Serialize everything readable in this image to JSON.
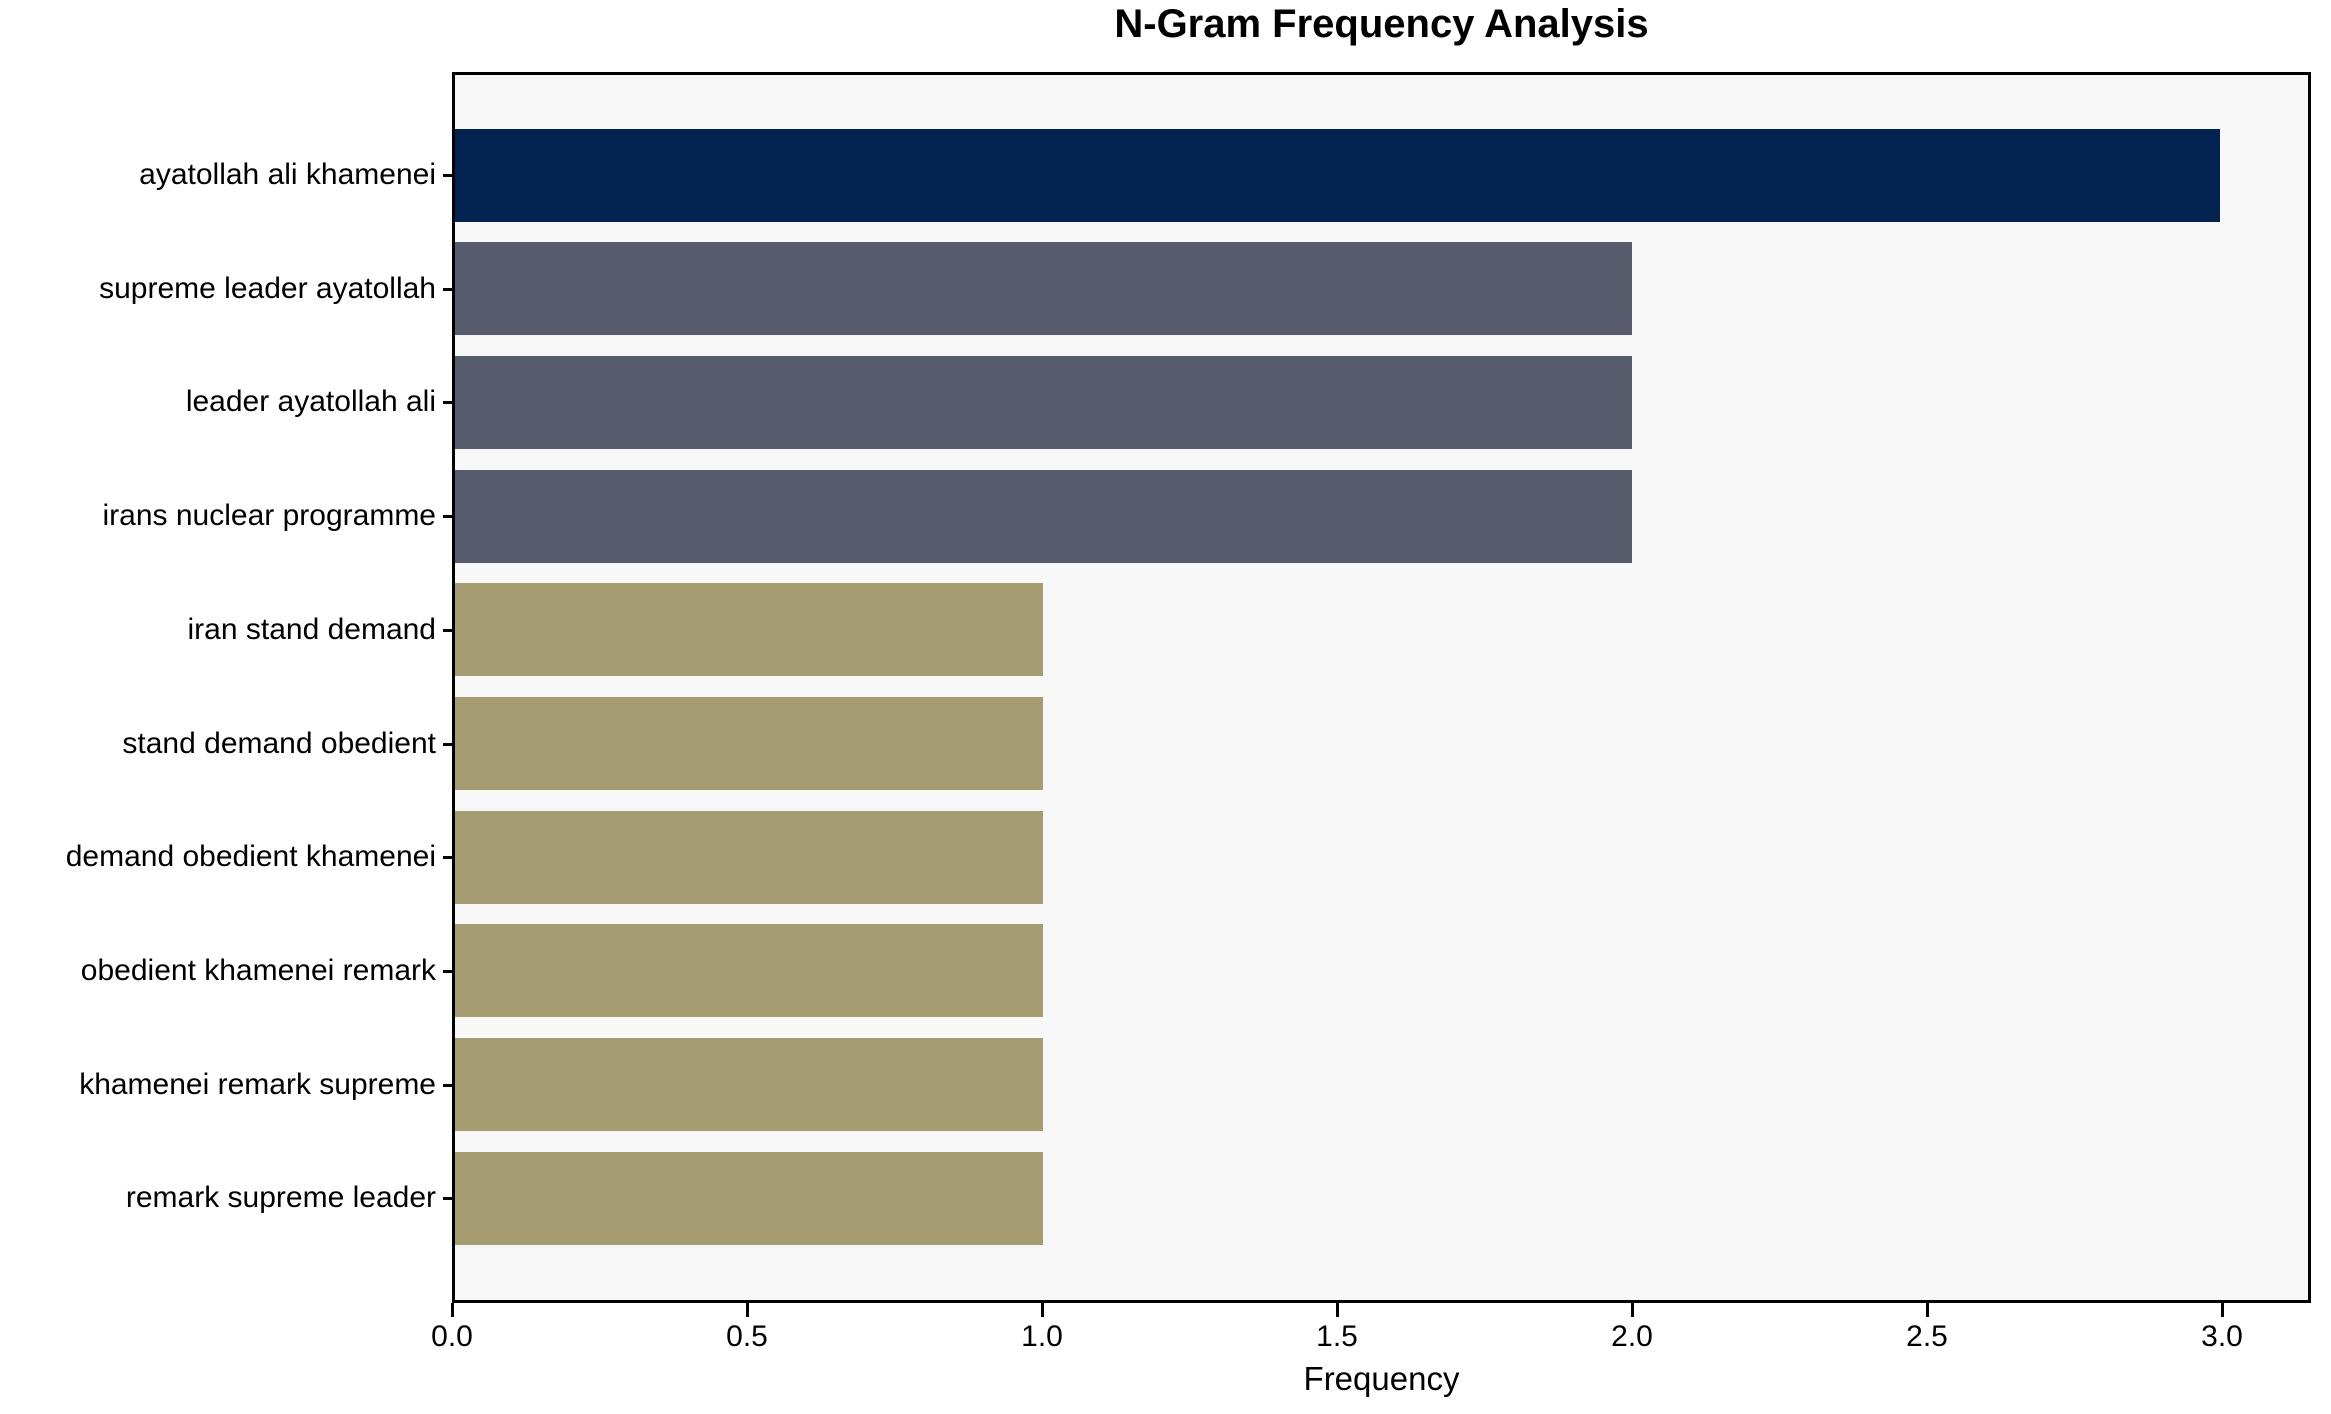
{
  "chart_data": {
    "type": "bar",
    "orientation": "horizontal",
    "title": "N-Gram Frequency Analysis",
    "xlabel": "Frequency",
    "ylabel": "",
    "categories": [
      "ayatollah ali khamenei",
      "supreme leader ayatollah",
      "leader ayatollah ali",
      "irans nuclear programme",
      "iran stand demand",
      "stand demand obedient",
      "demand obedient khamenei",
      "obedient khamenei remark",
      "khamenei remark supreme",
      "remark supreme leader"
    ],
    "values": [
      3,
      2,
      2,
      2,
      1,
      1,
      1,
      1,
      1,
      1
    ],
    "bar_colors": [
      "#032250",
      "#575C6C",
      "#575C6C",
      "#575C6C",
      "#A59D71",
      "#A59D71",
      "#A59D71",
      "#A59D71",
      "#A59D71",
      "#A59D71"
    ],
    "xticks": [
      "0.0",
      "0.5",
      "1.0",
      "1.5",
      "2.0",
      "2.5",
      "3.0"
    ],
    "xlim": [
      0,
      3.15
    ],
    "grid": false,
    "legend_position": "none",
    "colors": {
      "bar_high": "#032250",
      "bar_mid": "#575C6C",
      "bar_low": "#A59D71",
      "plot_background": "#F8F8F8",
      "figure_background": "#FFFFFF",
      "axis": "#000000",
      "text": "#000000"
    }
  }
}
